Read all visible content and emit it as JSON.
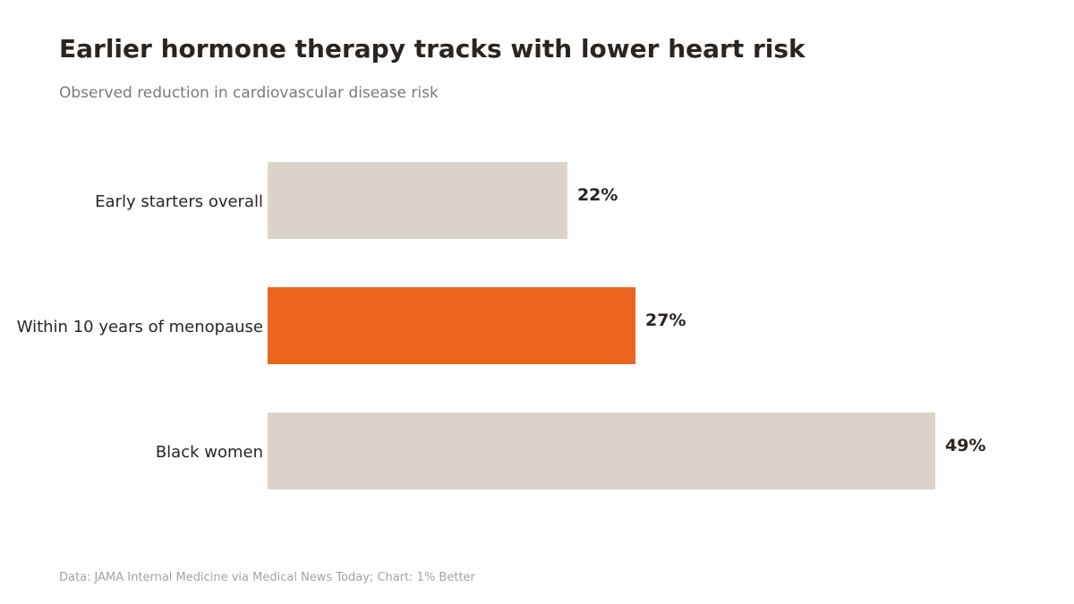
{
  "title": "Earlier hormone therapy tracks with lower heart risk",
  "subtitle": "Observed reduction in cardiovascular disease risk",
  "footer": "Data: JAMA Internal Medicine via Medical News Today; Chart: 1% Better",
  "colors": {
    "bar_default": "#dbd3c9",
    "bar_highlight": "#eb651f",
    "text": "#2a2521"
  },
  "chart_data": {
    "type": "bar",
    "orientation": "horizontal",
    "categories": [
      "Early starters overall",
      "Within 10 years of menopause",
      "Black women"
    ],
    "values": [
      22,
      27,
      49
    ],
    "value_labels": [
      "22%",
      "27%",
      "49%"
    ],
    "highlight_index": 1,
    "unit": "%",
    "xlim": [
      0,
      49
    ],
    "grid": false,
    "legend": "none"
  }
}
